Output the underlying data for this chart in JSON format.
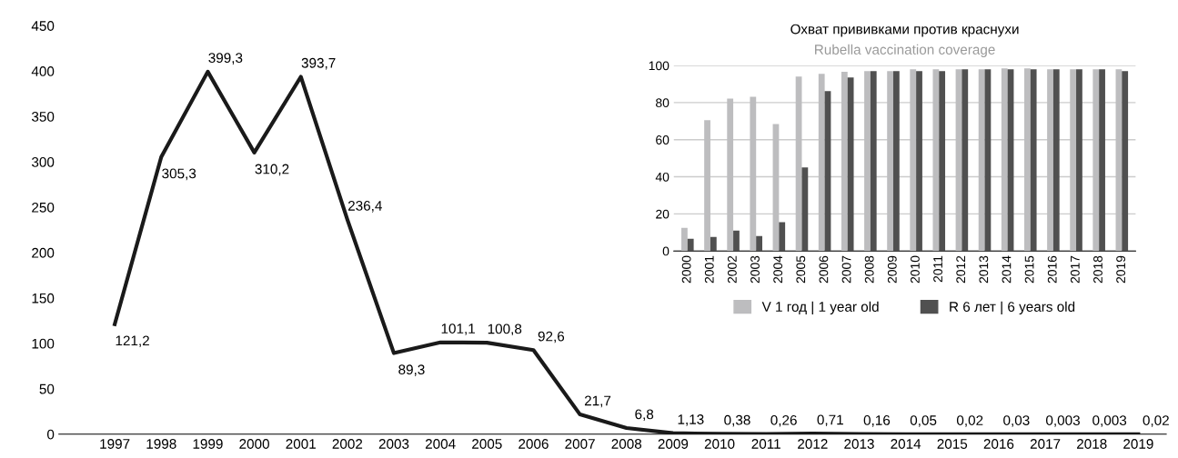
{
  "chart_data": [
    {
      "type": "line",
      "categories": [
        "1997",
        "1998",
        "1999",
        "2000",
        "2001",
        "2002",
        "2003",
        "2004",
        "2005",
        "2006",
        "2007",
        "2008",
        "2009",
        "2010",
        "2011",
        "2012",
        "2013",
        "2014",
        "2015",
        "2016",
        "2017",
        "2018",
        "2019"
      ],
      "series": [
        {
          "color": "#1a1a1a",
          "values": [
            121.2,
            305.3,
            399.3,
            310.2,
            393.7,
            236.4,
            89.3,
            101.1,
            100.8,
            92.6,
            21.7,
            6.8,
            1.13,
            0.38,
            0.26,
            0.71,
            0.16,
            0.05,
            0.02,
            0.03,
            0.003,
            0.003,
            0.02
          ],
          "value_labels": [
            "121,2",
            "305,3",
            "399,3",
            "310,2",
            "393,7",
            "236,4",
            "89,3",
            "101,1",
            "100,8",
            "92,6",
            "21,7",
            "6,8",
            "1,13",
            "0,38",
            "0,26",
            "0,71",
            "0,16",
            "0,05",
            "0,02",
            "0,03",
            "0,003",
            "0,003",
            "0,02"
          ]
        }
      ],
      "ylim": [
        0,
        450
      ],
      "yticks": [
        0,
        50,
        100,
        150,
        200,
        250,
        300,
        350,
        400,
        450
      ],
      "grid": false,
      "marker": "none",
      "line_style": "solid"
    },
    {
      "type": "bar",
      "title": "Охват прививками против краснухи",
      "subtitle": "Rubella vaccination coverage",
      "categories": [
        "2000",
        "2001",
        "2002",
        "2003",
        "2004",
        "2005",
        "2006",
        "2007",
        "2008",
        "2009",
        "2010",
        "2011",
        "2012",
        "2013",
        "2014",
        "2015",
        "2016",
        "2017",
        "2018",
        "2019"
      ],
      "series": [
        {
          "name": "V 1 год | 1 year old",
          "color": "#bdbdbf",
          "values": [
            12.5,
            70.5,
            82.2,
            83.1,
            68.4,
            94,
            95.5,
            96.6,
            97,
            97,
            98,
            98,
            98,
            98,
            98.5,
            98.5,
            98,
            98,
            98,
            98
          ]
        },
        {
          "name": "R 6 лет | 6 years old",
          "color": "#505050",
          "values": [
            6.6,
            7.6,
            11,
            8,
            15.5,
            45,
            86.2,
            93.6,
            97,
            97,
            97,
            97,
            98,
            98,
            98,
            98,
            98,
            98,
            98,
            97
          ]
        }
      ],
      "ylim": [
        0,
        100
      ],
      "yticks": [
        0,
        20,
        40,
        60,
        80,
        100
      ],
      "grid": "y",
      "legend": "bottom"
    }
  ]
}
